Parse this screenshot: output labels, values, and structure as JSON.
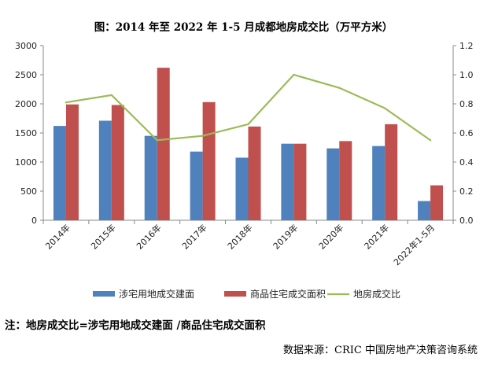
{
  "title": "图：2014 年至 2022 年 1-5 月成都地房成交比（万平方米）",
  "note": "注：地房成交比=涉宅用地成交建面 /商品住宅成交面积",
  "source": "数据来源：CRIC 中国房地产决策咨询系统",
  "chart_data": {
    "type": "bar",
    "categories": [
      "2014年",
      "2015年",
      "2016年",
      "2017年",
      "2018年",
      "2019年",
      "2020年",
      "2021年",
      "2022年1-5月"
    ],
    "series": [
      {
        "name": "涉宅用地成交建面",
        "type": "bar",
        "axis": "left",
        "color": "#4f81bd",
        "values": [
          1620,
          1710,
          1450,
          1180,
          1075,
          1315,
          1235,
          1275,
          330
        ]
      },
      {
        "name": "商品住宅成交面积",
        "type": "bar",
        "axis": "left",
        "color": "#c0504d",
        "values": [
          1990,
          1980,
          2620,
          2030,
          1610,
          1315,
          1360,
          1650,
          600
        ]
      },
      {
        "name": "地房成交比",
        "type": "line",
        "axis": "right",
        "color": "#9bbb59",
        "values": [
          0.81,
          0.86,
          0.55,
          0.58,
          0.66,
          1.0,
          0.91,
          0.77,
          0.55
        ]
      }
    ],
    "y_left": {
      "min": 0,
      "max": 3000,
      "ticks": [
        "0",
        "500",
        "1000",
        "1500",
        "2000",
        "2500",
        "3000"
      ]
    },
    "y_right": {
      "min": 0,
      "max": 1.2,
      "ticks": [
        "0.0",
        "0.2",
        "0.4",
        "0.6",
        "0.8",
        "1.0",
        "1.2"
      ]
    },
    "legend": [
      "涉宅用地成交建面",
      "商品住宅成交面积",
      "地房成交比"
    ],
    "legend_position": "bottom"
  }
}
